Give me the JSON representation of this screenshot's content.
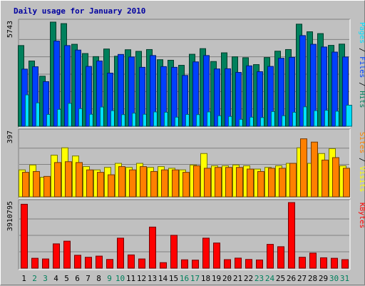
{
  "title": "Daily usage for January 2010",
  "colors": {
    "background": "#c0c0c0",
    "title": "#0000a0",
    "hits": "#00805c",
    "files": "#0040ff",
    "pages": "#00e0ff",
    "visits": "#ffff00",
    "sites": "#ff8000",
    "kbytes": "#ff0000",
    "weekday_label": "#000000",
    "weekend_label": "#00805c"
  },
  "chart_data": {
    "type": "bar",
    "title": "Daily usage for January 2010",
    "categories": [
      "1",
      "2",
      "3",
      "4",
      "5",
      "6",
      "7",
      "8",
      "9",
      "10",
      "11",
      "12",
      "13",
      "14",
      "15",
      "16",
      "17",
      "18",
      "19",
      "20",
      "21",
      "22",
      "23",
      "24",
      "25",
      "26",
      "27",
      "28",
      "29",
      "30",
      "31"
    ],
    "weekend_days": [
      "2",
      "3",
      "9",
      "10",
      "16",
      "17",
      "23",
      "24",
      "30",
      "31"
    ],
    "panels": [
      {
        "name": "hits-files-pages",
        "max_label": "5743",
        "ylim": [
          0,
          5743
        ],
        "legend": [
          {
            "text": "Hits",
            "color": "#00805c"
          },
          {
            "text": "Files",
            "color": "#0040ff"
          },
          {
            "text": "Pages",
            "color": "#00e0ff"
          }
        ],
        "series": [
          {
            "name": "Hits",
            "color": "#00805c",
            "values": [
              4450,
              3600,
              2760,
              5743,
              5660,
              4520,
              4010,
              3840,
              4260,
              3860,
              4220,
              4130,
              4230,
              3670,
              3640,
              3360,
              3970,
              4280,
              3570,
              4050,
              3830,
              3780,
              3400,
              3790,
              4140,
              4230,
              5630,
              5210,
              5110,
              4460,
              4530
            ]
          },
          {
            "name": "Files",
            "color": "#0040ff",
            "values": [
              3150,
              3280,
              2460,
              4700,
              4450,
              4200,
              3300,
              3600,
              2930,
              3960,
              3820,
              3250,
              3900,
              3290,
              3250,
              2800,
              3550,
              3900,
              3160,
              3170,
              2970,
              3330,
              3010,
              3300,
              3750,
              3800,
              5000,
              4520,
              4370,
              4090,
              3820
            ]
          },
          {
            "name": "Pages",
            "color": "#00e0ff",
            "values": [
              1730,
              1290,
              650,
              930,
              1260,
              970,
              660,
              1060,
              860,
              640,
              720,
              660,
              790,
              770,
              500,
              650,
              640,
              790,
              580,
              540,
              380,
              500,
              480,
              810,
              580,
              770,
              1070,
              860,
              880,
              830,
              1160
            ]
          }
        ]
      },
      {
        "name": "visits-sites",
        "max_label": "397",
        "ylim": [
          0,
          397
        ],
        "legend": [
          {
            "text": "Visits",
            "color": "#ffff00"
          },
          {
            "text": "Sites",
            "color": "#ff8000"
          }
        ],
        "series": [
          {
            "name": "Visits",
            "color": "#ffff00",
            "values": [
              165,
              195,
              120,
              255,
              300,
              250,
              185,
              165,
              180,
              205,
              180,
              205,
              180,
              185,
              175,
              165,
              195,
              265,
              190,
              190,
              195,
              190,
              170,
              180,
              190,
              205,
              300,
              205,
              265,
              295,
              190
            ]
          },
          {
            "name": "Sites",
            "color": "#ff8000",
            "values": [
              150,
              155,
              125,
              210,
              215,
              210,
              165,
              150,
              135,
              185,
              165,
              185,
              155,
              165,
              165,
              150,
              190,
              175,
              180,
              180,
              180,
              170,
              155,
              175,
              175,
              205,
              355,
              335,
              225,
              240,
              175
            ]
          }
        ]
      },
      {
        "name": "kbytes",
        "max_label": "3910795",
        "ylim": [
          0,
          3910795
        ],
        "legend": [
          {
            "text": "KBytes",
            "color": "#ff0000"
          }
        ],
        "series": [
          {
            "name": "KBytes",
            "color": "#ff0000",
            "values": [
              3810000,
              590000,
              550000,
              1450000,
              1610000,
              770000,
              650000,
              720000,
              520000,
              1790000,
              790000,
              550000,
              2450000,
              330000,
              1960000,
              500000,
              480000,
              1790000,
              1500000,
              510000,
              600000,
              520000,
              490000,
              1420000,
              1280000,
              3910795,
              650000,
              900000,
              620000,
              590000,
              510000
            ]
          }
        ]
      }
    ]
  }
}
